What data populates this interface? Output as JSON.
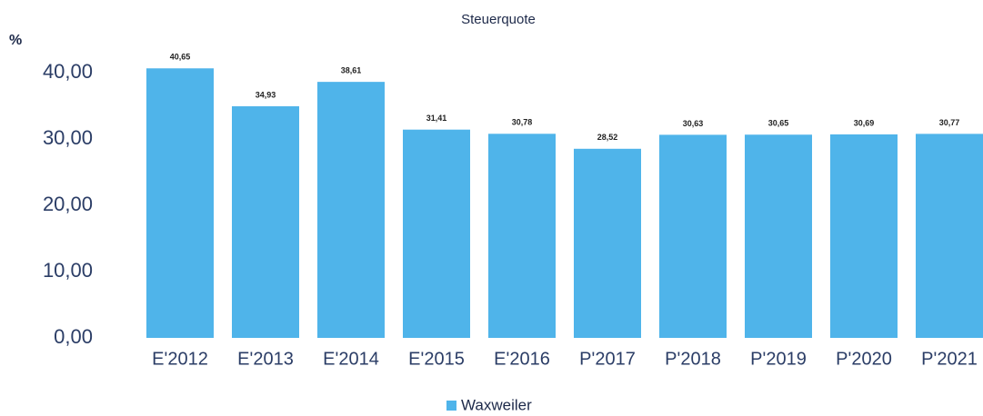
{
  "chart_data": {
    "type": "bar",
    "title": "Steuerquote",
    "y_label": "%",
    "categories": [
      "E'2012",
      "E'2013",
      "E'2014",
      "E'2015",
      "E'2016",
      "P'2017",
      "P'2018",
      "P'2019",
      "P'2020",
      "P'2021"
    ],
    "series": [
      {
        "name": "Waxweiler",
        "color": "#4fb4ea",
        "values": [
          40.65,
          34.93,
          38.61,
          31.41,
          30.78,
          28.52,
          30.63,
          30.65,
          30.69,
          30.77
        ],
        "value_labels": [
          "40,65",
          "34,93",
          "38,61",
          "31,41",
          "30,78",
          "28,52",
          "30,63",
          "30,65",
          "30,69",
          "30,77"
        ]
      }
    ],
    "ylim": [
      0,
      40
    ],
    "yticks": [
      {
        "value": 0,
        "label": "0,00"
      },
      {
        "value": 10,
        "label": "10,00"
      },
      {
        "value": 20,
        "label": "20,00"
      },
      {
        "value": 30,
        "label": "30,00"
      },
      {
        "value": 40,
        "label": "40,00"
      }
    ],
    "grid": false,
    "legend": "bottom"
  }
}
